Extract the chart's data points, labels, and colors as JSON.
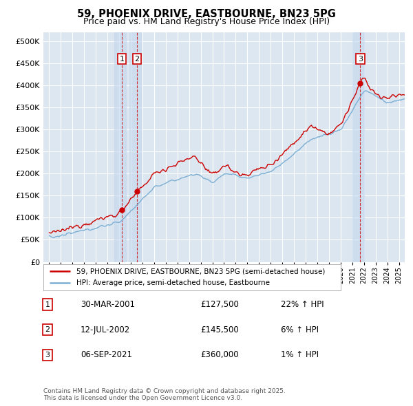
{
  "title": "59, PHOENIX DRIVE, EASTBOURNE, BN23 5PG",
  "subtitle": "Price paid vs. HM Land Registry's House Price Index (HPI)",
  "plot_bg_color": "#dce6f0",
  "legend_line1": "59, PHOENIX DRIVE, EASTBOURNE, BN23 5PG (semi-detached house)",
  "legend_line2": "HPI: Average price, semi-detached house, Eastbourne",
  "sales": [
    {
      "num": 1,
      "date_label": "30-MAR-2001",
      "price": 127500,
      "pct": "22%",
      "dir": "↑",
      "x_year": 2001.24
    },
    {
      "num": 2,
      "date_label": "12-JUL-2002",
      "price": 145500,
      "pct": "6%",
      "dir": "↑",
      "x_year": 2002.53
    },
    {
      "num": 3,
      "date_label": "06-SEP-2021",
      "price": 360000,
      "pct": "1%",
      "dir": "↑",
      "x_year": 2021.68
    }
  ],
  "footer": "Contains HM Land Registry data © Crown copyright and database right 2025.\nThis data is licensed under the Open Government Licence v3.0.",
  "ylim": [
    0,
    520000
  ],
  "yticks": [
    0,
    50000,
    100000,
    150000,
    200000,
    250000,
    300000,
    350000,
    400000,
    450000,
    500000
  ],
  "xlim": [
    1994.5,
    2025.5
  ],
  "red_color": "#cc0000",
  "blue_color": "#7bafd4",
  "shade_color": "#dce6f5"
}
